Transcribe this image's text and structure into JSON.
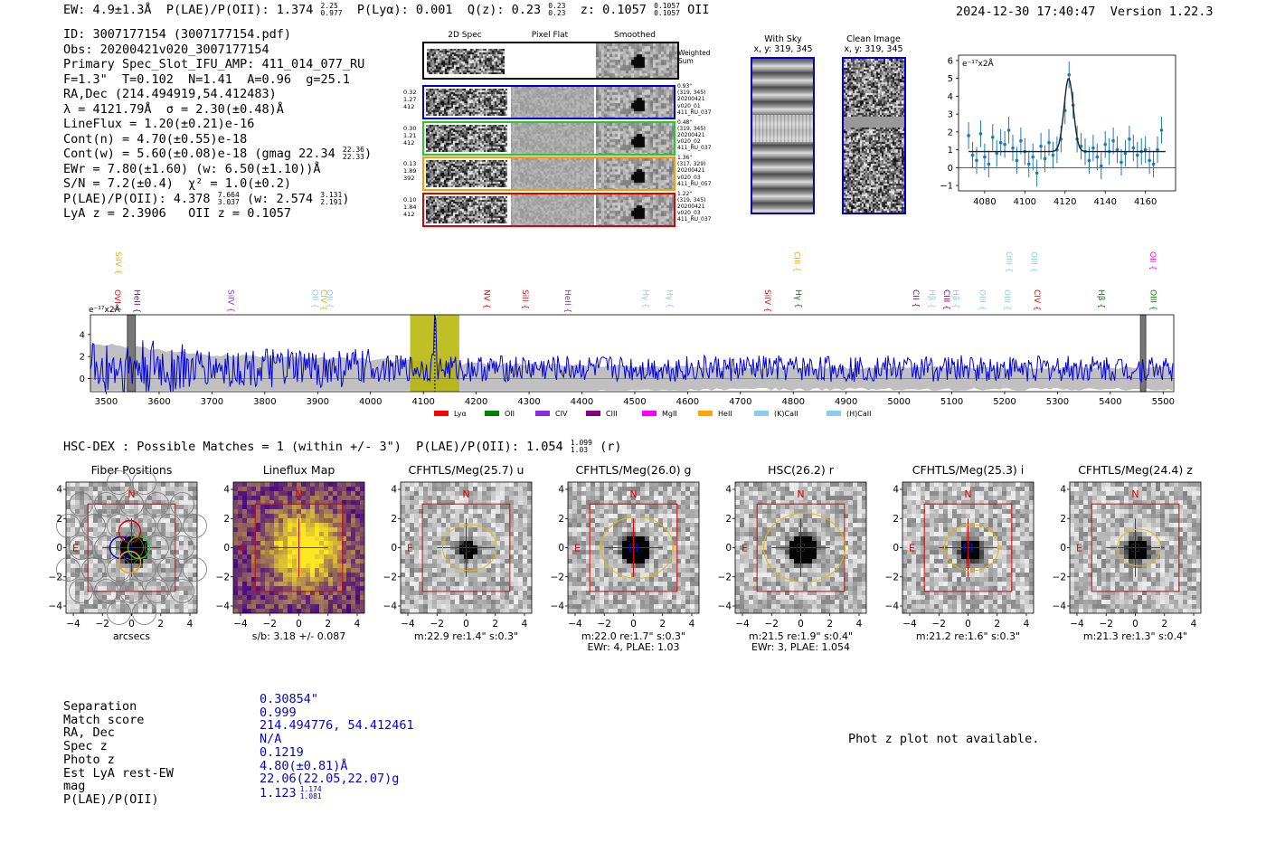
{
  "header": {
    "ew": "EW: 4.9±1.3Å",
    "plae": "P(LAE)/P(OII): 1.374",
    "plae_hi": "2.25",
    "plae_lo": "0.977",
    "plya": "P(Lyα): 0.001",
    "qz": "Q(z): 0.23",
    "qz_hi": "0.23",
    "qz_lo": "0.23",
    "z": "z: 0.1057",
    "z_hi": "0.1057",
    "z_lo": "0.1057",
    "line": "OII",
    "timestamp": "2024-12-30 17:40:47",
    "version": "Version 1.22.3"
  },
  "info": {
    "id": "ID: 3007177154 (3007177154.pdf)",
    "obs": "Obs: 20200421v020_3007177154",
    "primary": "Primary Spec_Slot_IFU_AMP: 411_014_077_RU",
    "fibre": "F=1.3\"  T=0.102  N=1.41  A=0.96  g=25.1",
    "radec": "RA,Dec (214.494919,54.412483)",
    "lambda": "λ = 4121.79Å  σ = 2.30(±0.48)Å",
    "lineflux": "LineFlux = 1.20(±0.21)e-16",
    "contn": "Cont(n) = 4.70(±0.55)e-18",
    "contw": "Cont(w) = 5.60(±0.08)e-18 (gmag 22.34",
    "gmag_hi": "22.36",
    "gmag_lo": "22.33",
    "contw_close": ")",
    "ewr": "EWr = 7.80(±1.60) (w: 6.50(±1.10))Å",
    "sn": "S/N = 7.2(±0.4)  χ² = 1.0(±0.2)",
    "plae2": "P(LAE)/P(OII): 4.378",
    "plae2_hi": "7.664",
    "plae2_lo": "3.037",
    "plae2_w": "(w: 2.574",
    "plae2_w_hi": "3.131",
    "plae2_w_lo": "2.191",
    "plae2_close": ")",
    "lyaz": "LyA z = 2.3906   OII z = 0.1057"
  },
  "fiber_panel": {
    "col_titles": [
      "2D Spec",
      "Pixel Flat",
      "Smoothed"
    ],
    "weighted_label": "Weighted\nSum",
    "rows": [
      {
        "left": [
          "0.32",
          "1.27",
          "412"
        ],
        "right": [
          "0.93\"",
          "(319, 345)",
          "20200421",
          "v020_01",
          "411_RU_037"
        ],
        "color": "#0000cc"
      },
      {
        "left": [
          "0.30",
          "1.21",
          "412"
        ],
        "right": [
          "0.48\"",
          "(319, 345)",
          "20200421",
          "v020_02",
          "411_RU_037"
        ],
        "color": "#22cc22"
      },
      {
        "left": [
          "0.13",
          "1.89",
          "392"
        ],
        "right": [
          "1.36\"",
          "(317, 329)",
          "20200421",
          "v020_03",
          "411_RU_057"
        ],
        "color": "#ff9900"
      },
      {
        "left": [
          "0.10",
          "1.84",
          "412"
        ],
        "right": [
          "1.22\"",
          "(319, 345)",
          "20200421",
          "v020_03",
          "411_RU_037"
        ],
        "color": "#dd0000"
      }
    ]
  },
  "sky_panels": {
    "with_sky": "With Sky",
    "with_sky_xy": "x, y: 319, 345",
    "clean": "Clean Image",
    "clean_xy": "x, y: 319, 345"
  },
  "chart_data": [
    {
      "type": "line",
      "title": "",
      "ylabel": "e⁻¹⁷x2Å",
      "xlim": [
        4067,
        4175
      ],
      "ylim": [
        -1.3,
        6.3
      ],
      "xticks": [
        4080,
        4100,
        4120,
        4140,
        4160
      ],
      "yticks": [
        -1,
        0,
        1,
        2,
        3,
        4,
        5,
        6
      ],
      "points_x": [
        4072,
        4074,
        4076,
        4078,
        4080,
        4082,
        4084,
        4086,
        4088,
        4090,
        4092,
        4094,
        4096,
        4098,
        4100,
        4102,
        4104,
        4106,
        4108,
        4110,
        4112,
        4114,
        4116,
        4118,
        4120,
        4122,
        4124,
        4126,
        4128,
        4130,
        4132,
        4134,
        4136,
        4138,
        4140,
        4142,
        4144,
        4146,
        4148,
        4150,
        4152,
        4154,
        4156,
        4158,
        4160,
        4162,
        4164,
        4166,
        4168
      ],
      "points_y": [
        1.8,
        0.7,
        0.4,
        1.9,
        0.6,
        0.2,
        1.7,
        0.8,
        1.4,
        1.3,
        2.1,
        1.1,
        0.4,
        1.5,
        0.9,
        0.2,
        0.6,
        -0.3,
        1.2,
        0.5,
        1.4,
        0.7,
        1.0,
        1.6,
        3.2,
        5.2,
        3.5,
        1.6,
        1.2,
        0.9,
        0.4,
        1.1,
        0.6,
        0.1,
        1.3,
        0.9,
        1.5,
        1.0,
        0.3,
        0.8,
        1.6,
        1.1,
        0.7,
        0.9,
        1.0,
        0.4,
        0.2,
        1.0,
        2.1
      ],
      "err": 0.75,
      "fit": {
        "continuum": 0.9,
        "peak": 5.0,
        "center": 4121.8,
        "sigma": 2.3
      }
    },
    {
      "type": "line",
      "ylabel": "e⁻¹⁷x2Å",
      "xlim": [
        3470,
        5520
      ],
      "ylim": [
        -1.2,
        5.8
      ],
      "xticks": [
        3500,
        3600,
        3700,
        3800,
        3900,
        4000,
        4100,
        4200,
        4300,
        4400,
        4500,
        4600,
        4700,
        4800,
        4900,
        5000,
        5100,
        5200,
        5300,
        5400,
        5500
      ],
      "yticks": [
        0,
        2,
        4
      ],
      "line_wavelength": 4121.79,
      "highlight": [
        4075,
        4168
      ],
      "masked": [
        [
          3540,
          3555
        ],
        [
          5457,
          5467
        ]
      ],
      "legend": [
        {
          "name": "Lyα",
          "color": "#ff0000"
        },
        {
          "name": "OII",
          "color": "#008000"
        },
        {
          "name": "CIV",
          "color": "#8a2be2"
        },
        {
          "name": "CIII",
          "color": "#800080"
        },
        {
          "name": "MgII",
          "color": "#ff00ff"
        },
        {
          "name": "HeII",
          "color": "#ffa500"
        },
        {
          "name": "(K)CaII",
          "color": "#87ceeb"
        },
        {
          "name": "(H)CaII",
          "color": "#87ceeb"
        }
      ],
      "line_labels": [
        {
          "name": "OVI",
          "x": 3511,
          "row": 1,
          "color": "#ff0000"
        },
        {
          "name": "HeII",
          "x": 3548,
          "row": 1,
          "color": "#800080"
        },
        {
          "name": "SiIV",
          "x": 3513,
          "row": 0,
          "color": "#ffa500"
        },
        {
          "name": "SiIV",
          "x": 3726,
          "row": 1,
          "color": "#8a2be2"
        },
        {
          "name": "OII",
          "x": 3885,
          "row": 1,
          "color": "#87ceeb"
        },
        {
          "name": "CIV",
          "x": 3901,
          "row": 1,
          "color": "#ffa500"
        },
        {
          "name": "OII",
          "x": 3912,
          "row": 1,
          "color": "#87ceeb"
        },
        {
          "name": "NV",
          "x": 4210,
          "row": 1,
          "color": "#ff0000"
        },
        {
          "name": "SiII",
          "x": 4283,
          "row": 1,
          "color": "#ff0000"
        },
        {
          "name": "HeII",
          "x": 4363,
          "row": 1,
          "color": "#8a2be2"
        },
        {
          "name": "Hγ",
          "x": 4510,
          "row": 1,
          "color": "#87ceeb"
        },
        {
          "name": "Hγ",
          "x": 4556,
          "row": 1,
          "color": "#87ceeb"
        },
        {
          "name": "SiIV",
          "x": 4741,
          "row": 1,
          "color": "#ff0000"
        },
        {
          "name": "CIII",
          "x": 4797,
          "row": 0,
          "color": "#ffa500"
        },
        {
          "name": "Hγ",
          "x": 4800,
          "row": 1,
          "color": "#008000"
        },
        {
          "name": "CII",
          "x": 5022,
          "row": 1,
          "color": "#800080"
        },
        {
          "name": "Hβ",
          "x": 5052,
          "row": 1,
          "color": "#87ceeb"
        },
        {
          "name": "CIII",
          "x": 5080,
          "row": 1,
          "color": "#800080"
        },
        {
          "name": "Hβ",
          "x": 5097,
          "row": 1,
          "color": "#87ceeb"
        },
        {
          "name": "OIII",
          "x": 5148,
          "row": 1,
          "color": "#87ceeb"
        },
        {
          "name": "OIII",
          "x": 5195,
          "row": 1,
          "color": "#87ceeb"
        },
        {
          "name": "OIII",
          "x": 5198,
          "row": 0,
          "color": "#87ceeb"
        },
        {
          "name": "OIII",
          "x": 5245,
          "row": 0,
          "color": "#87ceeb"
        },
        {
          "name": "CIV",
          "x": 5251,
          "row": 1,
          "color": "#ff0000"
        },
        {
          "name": "Hβ",
          "x": 5373,
          "row": 1,
          "color": "#008000"
        },
        {
          "name": "OII",
          "x": 5470,
          "row": 0,
          "color": "#ff00ff"
        },
        {
          "name": "OIII",
          "x": 5471,
          "row": 1,
          "color": "#008000"
        }
      ]
    }
  ],
  "hsc": {
    "title": "HSC-DEX : Possible Matches = 1 (within +/- 3\")  P(LAE)/P(OII): 1.054",
    "title_hi": "1.099",
    "title_lo": "1.03",
    "title_band": "(r)"
  },
  "cutouts": [
    {
      "title": "Fiber Positions",
      "caption": "arcsecs",
      "caption2": ""
    },
    {
      "title": "Lineflux Map",
      "caption": "s/b: 3.18 +/- 0.087",
      "caption2": ""
    },
    {
      "title": "CFHTLS/Meg(25.7) u",
      "caption": "m:22.9  re:1.4\"  s:0.3\"",
      "caption2": ""
    },
    {
      "title": "CFHTLS/Meg(26.0) g",
      "caption": "m:22.0  re:1.7\"  s:0.3\"",
      "caption2": "EWr: 4, PLAE: 1.03"
    },
    {
      "title": "HSC(26.2) r",
      "caption": "m:21.5  re:1.9\"  s:0.4\"",
      "caption2": "EWr: 3, PLAE: 1.054"
    },
    {
      "title": "CFHTLS/Meg(25.3) i",
      "caption": "m:21.2  re:1.6\"  s:0.3\"",
      "caption2": ""
    },
    {
      "title": "CFHTLS/Meg(24.4) z",
      "caption": "m:21.3  re:1.3\"  s:0.4\"",
      "caption2": ""
    }
  ],
  "cutout_axes": {
    "ticks": [
      "−4",
      "−2",
      "0",
      "2",
      "4"
    ],
    "north": "N",
    "east": "E"
  },
  "match_table": {
    "labels": [
      "Separation",
      "Match score",
      "RA, Dec",
      "Spec z",
      "Photo z",
      "Est LyA rest-EW",
      "mag",
      "P(LAE)/P(OII)"
    ],
    "values": [
      "0.30854\"",
      "0.999",
      "214.494776, 54.412461",
      "N/A",
      "0.1219",
      "4.80(±0.81)Å",
      "22.06(22.05,22.07)g",
      "1.123"
    ],
    "plae_hi": "1.174",
    "plae_lo": "1.081"
  },
  "photz_note": "Phot z plot not available."
}
